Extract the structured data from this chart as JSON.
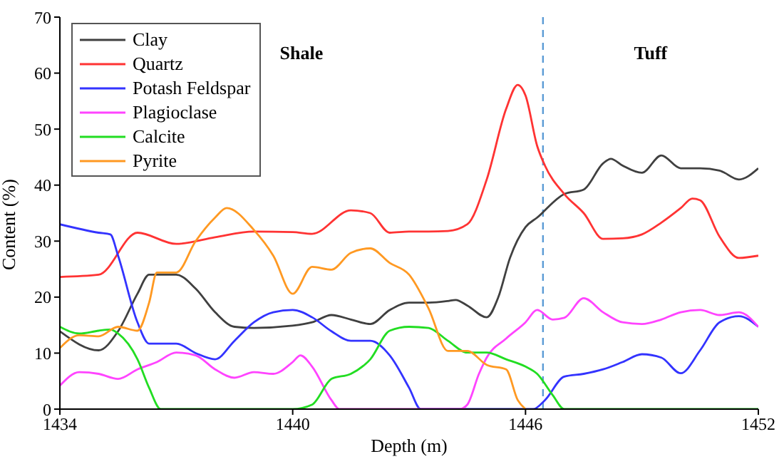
{
  "chart_data": {
    "type": "line",
    "xlabel": "Depth (m)",
    "ylabel": "Content (%)",
    "xlim": [
      1434,
      1452
    ],
    "xticks": [
      1434,
      1440,
      1446,
      1452
    ],
    "ylim": [
      0,
      70
    ],
    "yticks": [
      0,
      10,
      20,
      30,
      40,
      50,
      60,
      70
    ],
    "grid": false,
    "legend": "top left",
    "marker": "none",
    "line_style": "solid",
    "annotations": [
      "Shale",
      "Tuff"
    ],
    "ref_lines": [
      {
        "axis": "x",
        "value": 1446.45,
        "color": "#5b9bd5",
        "line_style": "dashed"
      }
    ],
    "series": [
      {
        "name": "Clay",
        "color": "#404040",
        "x": [
          1434,
          1435,
          1435.5,
          1436,
          1436.3,
          1437,
          1437.5,
          1438,
          1438.5,
          1439,
          1440,
          1440.5,
          1441,
          1441.5,
          1442,
          1442.5,
          1443,
          1443.5,
          1444,
          1444.2,
          1444.5,
          1445,
          1445.3,
          1445.6,
          1446,
          1446.3,
          1447,
          1447.5,
          1448,
          1448.2,
          1448.5,
          1449,
          1449.5,
          1450,
          1450.5,
          1451,
          1451.5,
          1452
        ],
        "values": [
          13.9,
          10.5,
          13.9,
          20.6,
          24,
          24,
          21.5,
          17.3,
          14.7,
          14.5,
          14.9,
          15.5,
          16.8,
          16,
          15.2,
          17.7,
          19,
          19,
          19.3,
          19.5,
          18.5,
          16.4,
          20,
          27,
          32.5,
          34.2,
          38.4,
          39.2,
          43.9,
          44.7,
          43.5,
          42.2,
          45.3,
          43,
          43,
          42.6,
          41,
          43
        ]
      },
      {
        "name": "Quartz",
        "color": "#ff3333",
        "x": [
          1434,
          1435,
          1436,
          1437,
          1438,
          1439,
          1440,
          1440.5,
          1441.5,
          1442,
          1442.5,
          1443,
          1443.5,
          1444,
          1444.5,
          1445,
          1445.5,
          1445.8,
          1446,
          1446.3,
          1446.5,
          1447,
          1447.5,
          1448,
          1448.5,
          1449,
          1449.5,
          1450,
          1450.3,
          1450.5,
          1451,
          1451.5,
          1452
        ],
        "values": [
          23.6,
          24,
          31.5,
          29.5,
          30.7,
          31.7,
          31.6,
          31.3,
          35.5,
          35,
          31.5,
          31.7,
          31.7,
          31.8,
          33,
          41,
          53.6,
          57.9,
          56,
          47,
          43.5,
          38.4,
          35,
          30.4,
          30.5,
          31.2,
          33.3,
          35.9,
          37.6,
          37.3,
          30.8,
          27,
          27.4
        ]
      },
      {
        "name": "Potash Feldspar",
        "color": "#3333ff",
        "x": [
          1434,
          1435,
          1435.3,
          1435.5,
          1436,
          1436.3,
          1437,
          1437.5,
          1438,
          1438.5,
          1439,
          1439.5,
          1440,
          1440.5,
          1441,
          1441.5,
          1442,
          1442.5,
          1443,
          1443.3,
          1444,
          1445,
          1446.2,
          1446.5,
          1447,
          1447.5,
          1448,
          1448.5,
          1449,
          1449.5,
          1450,
          1450.5,
          1451,
          1451.5,
          1452
        ],
        "values": [
          33,
          31.5,
          31.2,
          27.4,
          15.5,
          11.7,
          11.7,
          10,
          8.9,
          12.2,
          15.5,
          17.3,
          17.7,
          16.4,
          13.9,
          12.2,
          12.2,
          9.6,
          3.8,
          0,
          0,
          0,
          0,
          1.6,
          5.8,
          6.3,
          7.1,
          8.4,
          9.8,
          9.2,
          6.4,
          10.5,
          15.5,
          16.6,
          14.7
        ]
      },
      {
        "name": "Plagioclase",
        "color": "#ff44ff",
        "x": [
          1434,
          1434.5,
          1435,
          1435.5,
          1436,
          1436.5,
          1437,
          1437.5,
          1438,
          1438.5,
          1439,
          1439.5,
          1440,
          1440.2,
          1440.5,
          1441,
          1441.2,
          1442,
          1443,
          1444.3,
          1444.5,
          1444.8,
          1445,
          1445.5,
          1446,
          1446.3,
          1446.7,
          1447,
          1447.5,
          1448,
          1448.5,
          1449,
          1449.5,
          1450,
          1450.5,
          1451,
          1451.5,
          1452
        ],
        "values": [
          4.2,
          6.6,
          6.3,
          5.4,
          7.1,
          8.4,
          10.1,
          9.6,
          7.1,
          5.6,
          6.6,
          6.3,
          8.4,
          9.6,
          7.6,
          1.6,
          0,
          0,
          0,
          0,
          0.8,
          6.3,
          9.2,
          12.6,
          15.5,
          17.7,
          16,
          16.3,
          19.8,
          17.3,
          15.5,
          15.2,
          16,
          17.3,
          17.7,
          16.8,
          17.3,
          14.7
        ]
      },
      {
        "name": "Calcite",
        "color": "#22dd22",
        "x": [
          1434,
          1434.5,
          1435,
          1435.3,
          1435.5,
          1436,
          1436.3,
          1436.6,
          1438,
          1440,
          1440.5,
          1441,
          1441.5,
          1442,
          1442.5,
          1443,
          1443.5,
          1444,
          1444.5,
          1445,
          1445.5,
          1446,
          1446.3,
          1446.7,
          1447,
          1452
        ],
        "values": [
          14.7,
          13.5,
          14,
          14.2,
          13.5,
          8.9,
          3.8,
          0,
          0,
          0,
          0.8,
          5.4,
          6.3,
          8.9,
          14,
          14.7,
          14.5,
          12.2,
          10.1,
          10.1,
          8.9,
          7.6,
          6.3,
          2.5,
          0,
          0
        ]
      },
      {
        "name": "Pyrite",
        "color": "#ff9922",
        "x": [
          1434,
          1434.5,
          1435,
          1435.5,
          1436,
          1436.3,
          1436.5,
          1437,
          1437.5,
          1438,
          1438.3,
          1439,
          1439.5,
          1440,
          1440.5,
          1441,
          1441.5,
          1442,
          1442.5,
          1443,
          1443.5,
          1444,
          1444.5,
          1445,
          1445.5,
          1445.8,
          1446
        ],
        "values": [
          10.9,
          13.2,
          13,
          14.7,
          14,
          19,
          24.4,
          24.4,
          30,
          34.2,
          35.9,
          32,
          27.4,
          20.6,
          25.4,
          24.9,
          27.9,
          28.7,
          26.1,
          24,
          18,
          10.4,
          10.4,
          7.9,
          7.1,
          1.6,
          0
        ]
      }
    ]
  }
}
